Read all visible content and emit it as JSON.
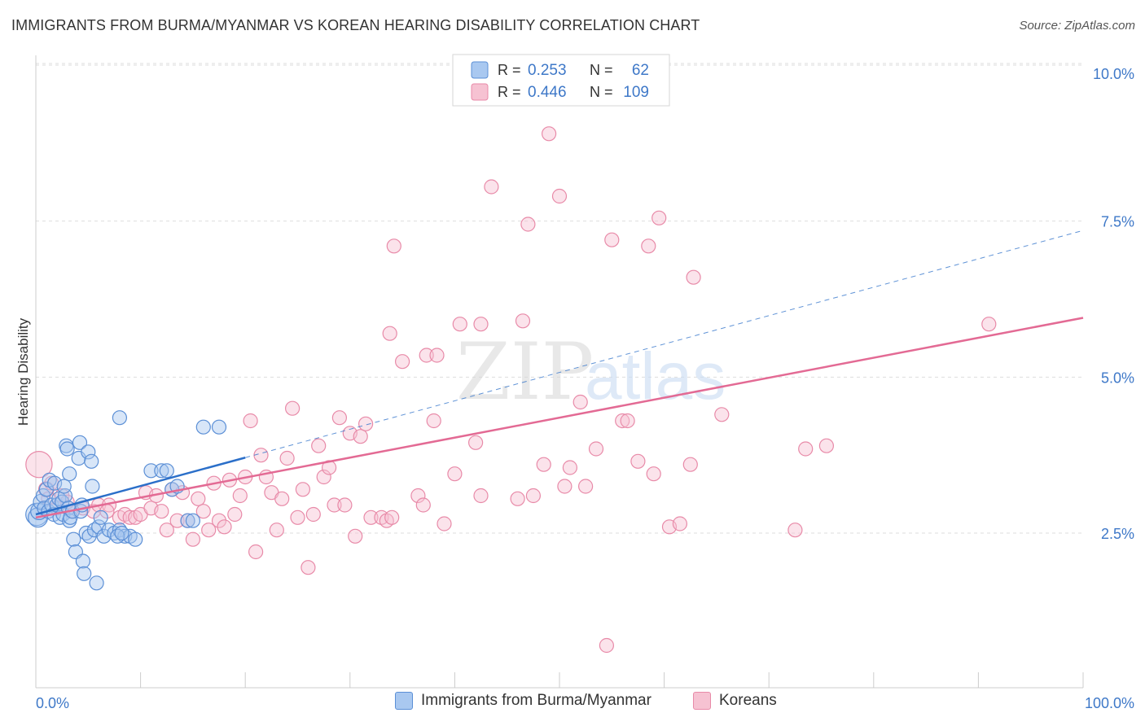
{
  "header": {
    "title": "IMMIGRANTS FROM BURMA/MYANMAR VS KOREAN HEARING DISABILITY CORRELATION CHART",
    "source": "Source: ZipAtlas.com"
  },
  "colors": {
    "blue_fill": "#a9c8f0",
    "blue_stroke": "#5b8fd6",
    "blue_line": "#2b6fc9",
    "pink_fill": "#f6c2d2",
    "pink_stroke": "#e88aa8",
    "pink_line": "#e36a94",
    "value_text": "#3e78c8",
    "grid": "#dddddd",
    "axis": "#cccccc"
  },
  "watermark": {
    "zip": "ZIP",
    "atlas": "atlas"
  },
  "chart_data": {
    "type": "scatter",
    "ylabel": "Hearing Disability",
    "xlim": [
      0,
      100
    ],
    "ylim": [
      0,
      10.5
    ],
    "x_tick_labels": [
      "0.0%",
      "100.0%"
    ],
    "y_ticks": [
      2.5,
      5.0,
      7.5,
      10.0
    ],
    "y_tick_labels": [
      "2.5%",
      "5.0%",
      "7.5%",
      "10.0%"
    ],
    "grid": true,
    "legend_top": [
      {
        "r_label": "R =",
        "r_value": "0.253",
        "n_label": "N =",
        "n_value": "62"
      },
      {
        "r_label": "R =",
        "r_value": "0.446",
        "n_label": "N =",
        "n_value": "109"
      }
    ],
    "series": [
      {
        "name": "Immigrants from Burma/Myanmar",
        "color": "blue",
        "trend": {
          "x0": 0,
          "y0": 2.8,
          "x1": 100,
          "y1": 7.35,
          "solid_until": 20
        },
        "points": [
          [
            0.1,
            2.8,
            1.6
          ],
          [
            0.2,
            2.75,
            1.4
          ],
          [
            0.3,
            2.85,
            1.2
          ],
          [
            0.5,
            3.0,
            1.1
          ],
          [
            0.7,
            3.1,
            1.0
          ],
          [
            0.8,
            2.9,
            1.0
          ],
          [
            1.0,
            3.2,
            1.0
          ],
          [
            1.2,
            2.85,
            1.0
          ],
          [
            1.3,
            3.35,
            1.0
          ],
          [
            1.5,
            2.95,
            1.0
          ],
          [
            1.7,
            2.8,
            1.0
          ],
          [
            1.8,
            3.3,
            1.0
          ],
          [
            2.0,
            2.95,
            1.0
          ],
          [
            2.2,
            3.05,
            1.0
          ],
          [
            2.3,
            2.75,
            1.0
          ],
          [
            2.5,
            3.0,
            1.0
          ],
          [
            2.6,
            2.8,
            1.0
          ],
          [
            2.8,
            3.1,
            1.0
          ],
          [
            2.9,
            3.9,
            1.0
          ],
          [
            3.0,
            3.85,
            1.0
          ],
          [
            3.1,
            2.9,
            1.0
          ],
          [
            3.2,
            2.7,
            1.0
          ],
          [
            3.3,
            2.75,
            1.0
          ],
          [
            3.5,
            2.85,
            1.0
          ],
          [
            3.6,
            2.4,
            1.0
          ],
          [
            3.8,
            2.2,
            1.0
          ],
          [
            3.2,
            3.45,
            1.0
          ],
          [
            2.7,
            3.25,
            1.0
          ],
          [
            4.1,
            3.7,
            1.0
          ],
          [
            4.2,
            3.95,
            1.0
          ],
          [
            4.3,
            2.85,
            1.0
          ],
          [
            4.4,
            2.95,
            1.0
          ],
          [
            4.5,
            2.05,
            1.0
          ],
          [
            4.6,
            1.85,
            1.0
          ],
          [
            4.8,
            2.5,
            1.0
          ],
          [
            5.0,
            3.8,
            1.0
          ],
          [
            5.1,
            2.45,
            1.0
          ],
          [
            5.3,
            3.65,
            1.0
          ],
          [
            5.4,
            3.25,
            1.0
          ],
          [
            5.6,
            2.55,
            1.0
          ],
          [
            5.8,
            1.7,
            1.0
          ],
          [
            6.0,
            2.6,
            1.0
          ],
          [
            6.2,
            2.75,
            1.0
          ],
          [
            6.5,
            2.45,
            1.0
          ],
          [
            7.0,
            2.55,
            1.0
          ],
          [
            7.5,
            2.5,
            1.0
          ],
          [
            8.0,
            2.55,
            1.0
          ],
          [
            8.5,
            2.45,
            1.0
          ],
          [
            9.0,
            2.45,
            1.0
          ],
          [
            9.5,
            2.4,
            1.0
          ],
          [
            7.8,
            2.45,
            1.0
          ],
          [
            8.2,
            2.5,
            1.0
          ],
          [
            11.0,
            3.5,
            1.0
          ],
          [
            12.0,
            3.5,
            1.0
          ],
          [
            12.5,
            3.5,
            1.0
          ],
          [
            13.0,
            3.2,
            1.0
          ],
          [
            13.5,
            3.25,
            1.0
          ],
          [
            14.5,
            2.7,
            1.0
          ],
          [
            15.0,
            2.7,
            1.0
          ],
          [
            16.0,
            4.2,
            1.0
          ],
          [
            17.5,
            4.2,
            1.0
          ],
          [
            8.0,
            4.35,
            1.0
          ]
        ]
      },
      {
        "name": "Koreans",
        "color": "pink",
        "trend": {
          "x0": 0,
          "y0": 2.75,
          "x1": 100,
          "y1": 5.95
        },
        "points": [
          [
            0.3,
            3.6,
            1.9
          ],
          [
            1.0,
            3.2,
            1.1
          ],
          [
            1.5,
            3.3,
            1.0
          ],
          [
            2.5,
            3.1,
            1.0
          ],
          [
            3.5,
            2.85,
            1.0
          ],
          [
            4.5,
            2.9,
            1.0
          ],
          [
            5.5,
            2.85,
            1.0
          ],
          [
            6.0,
            2.95,
            1.0
          ],
          [
            7.0,
            2.95,
            1.0
          ],
          [
            8.0,
            2.75,
            1.0
          ],
          [
            8.5,
            2.8,
            1.0
          ],
          [
            9.0,
            2.75,
            1.0
          ],
          [
            9.5,
            2.75,
            1.0
          ],
          [
            10.0,
            2.8,
            1.0
          ],
          [
            10.5,
            3.15,
            1.0
          ],
          [
            11.0,
            2.9,
            1.0
          ],
          [
            11.5,
            3.1,
            1.0
          ],
          [
            12.0,
            2.85,
            1.0
          ],
          [
            12.5,
            2.55,
            1.0
          ],
          [
            13.0,
            3.2,
            1.0
          ],
          [
            13.5,
            2.7,
            1.0
          ],
          [
            14.0,
            3.15,
            1.0
          ],
          [
            14.5,
            2.7,
            1.0
          ],
          [
            15.0,
            2.4,
            1.0
          ],
          [
            15.5,
            3.05,
            1.0
          ],
          [
            16.0,
            2.85,
            1.0
          ],
          [
            16.5,
            2.55,
            1.0
          ],
          [
            17.0,
            3.3,
            1.0
          ],
          [
            17.5,
            2.7,
            1.0
          ],
          [
            18.0,
            2.6,
            1.0
          ],
          [
            18.5,
            3.35,
            1.0
          ],
          [
            19.0,
            2.8,
            1.0
          ],
          [
            19.5,
            3.1,
            1.0
          ],
          [
            20.0,
            3.4,
            1.0
          ],
          [
            20.5,
            4.3,
            1.0
          ],
          [
            21.0,
            2.2,
            1.0
          ],
          [
            21.5,
            3.75,
            1.0
          ],
          [
            22.0,
            3.4,
            1.0
          ],
          [
            22.5,
            3.15,
            1.0
          ],
          [
            23.0,
            2.55,
            1.0
          ],
          [
            23.5,
            3.05,
            1.0
          ],
          [
            24.0,
            3.7,
            1.0
          ],
          [
            24.5,
            4.5,
            1.0
          ],
          [
            25.0,
            2.75,
            1.0
          ],
          [
            25.5,
            3.2,
            1.0
          ],
          [
            26.0,
            1.95,
            1.0
          ],
          [
            26.5,
            2.8,
            1.0
          ],
          [
            27.0,
            3.9,
            1.0
          ],
          [
            27.5,
            3.4,
            1.0
          ],
          [
            28.0,
            3.55,
            1.0
          ],
          [
            28.5,
            2.95,
            1.0
          ],
          [
            29.0,
            4.35,
            1.0
          ],
          [
            29.5,
            2.95,
            1.0
          ],
          [
            30.0,
            4.1,
            1.0
          ],
          [
            30.5,
            2.45,
            1.0
          ],
          [
            31.0,
            4.05,
            1.0
          ],
          [
            31.5,
            4.25,
            1.0
          ],
          [
            32.0,
            2.75,
            1.0
          ],
          [
            33.0,
            2.75,
            1.0
          ],
          [
            33.5,
            2.7,
            1.0
          ],
          [
            34.0,
            2.75,
            1.0
          ],
          [
            33.8,
            5.7,
            1.0
          ],
          [
            34.2,
            7.1,
            1.0
          ],
          [
            35.0,
            5.25,
            1.0
          ],
          [
            36.5,
            3.1,
            1.0
          ],
          [
            37.0,
            2.95,
            1.0
          ],
          [
            37.3,
            5.35,
            1.0
          ],
          [
            38.0,
            4.3,
            1.0
          ],
          [
            38.3,
            5.35,
            1.0
          ],
          [
            39.0,
            2.65,
            1.0
          ],
          [
            40.0,
            3.45,
            1.0
          ],
          [
            40.5,
            5.85,
            1.0
          ],
          [
            42.0,
            3.95,
            1.0
          ],
          [
            42.5,
            3.1,
            1.0
          ],
          [
            42.5,
            5.85,
            1.0
          ],
          [
            43.5,
            8.05,
            1.0
          ],
          [
            46.0,
            3.05,
            1.0
          ],
          [
            46.5,
            5.9,
            1.0
          ],
          [
            47.0,
            7.45,
            1.0
          ],
          [
            47.5,
            3.1,
            1.0
          ],
          [
            48.5,
            3.6,
            1.0
          ],
          [
            49.0,
            8.9,
            1.0
          ],
          [
            50.0,
            7.9,
            1.0
          ],
          [
            50.5,
            3.25,
            1.0
          ],
          [
            51.0,
            3.55,
            1.0
          ],
          [
            52.0,
            4.6,
            1.0
          ],
          [
            52.5,
            3.25,
            1.0
          ],
          [
            53.5,
            3.85,
            1.0
          ],
          [
            54.5,
            0.7,
            1.0
          ],
          [
            55.0,
            7.2,
            1.0
          ],
          [
            56.0,
            4.3,
            1.0
          ],
          [
            56.5,
            4.3,
            1.0
          ],
          [
            57.5,
            3.65,
            1.0
          ],
          [
            58.5,
            7.1,
            1.0
          ],
          [
            59.0,
            3.45,
            1.0
          ],
          [
            59.5,
            7.55,
            1.0
          ],
          [
            60.5,
            2.6,
            1.0
          ],
          [
            61.5,
            2.65,
            1.0
          ],
          [
            62.5,
            3.6,
            1.0
          ],
          [
            62.8,
            6.6,
            1.0
          ],
          [
            65.5,
            4.4,
            1.0
          ],
          [
            72.5,
            2.55,
            1.0
          ],
          [
            73.5,
            3.85,
            1.0
          ],
          [
            75.5,
            3.9,
            1.0
          ],
          [
            91.0,
            5.85,
            1.0
          ],
          [
            1.2,
            3.05,
            1.0
          ],
          [
            2.0,
            2.9,
            1.0
          ],
          [
            3.0,
            3.0,
            1.0
          ],
          [
            6.8,
            2.85,
            1.0
          ]
        ]
      }
    ]
  }
}
